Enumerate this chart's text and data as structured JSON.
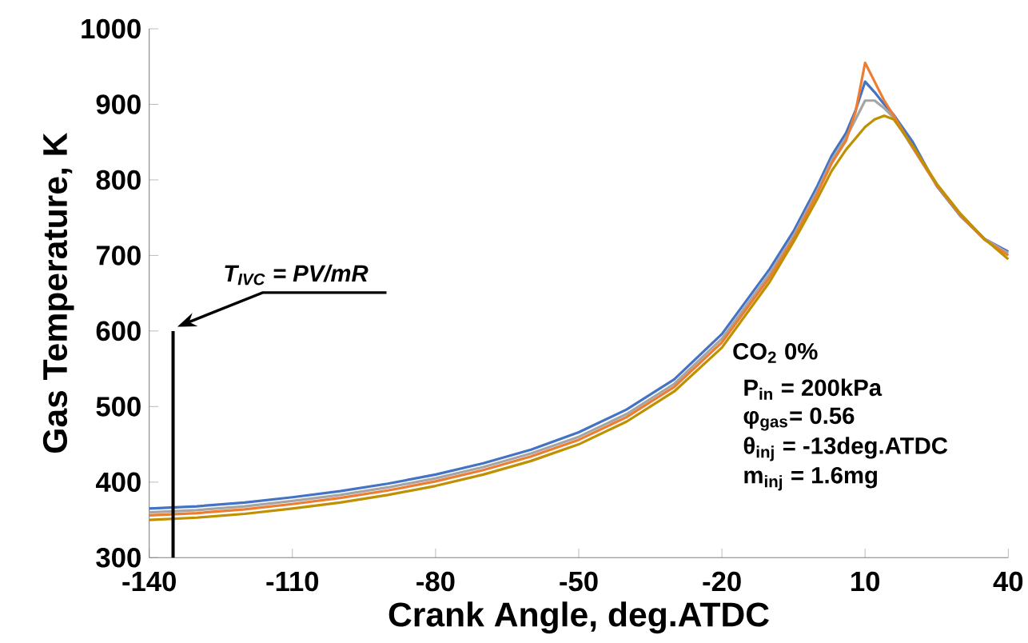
{
  "chart_data": {
    "type": "line",
    "xlabel": "Crank Angle, deg.ATDC",
    "ylabel": "Gas Temperature, K",
    "xlim": [
      -140,
      40
    ],
    "ylim": [
      300,
      1000
    ],
    "xticks": [
      -140,
      -110,
      -80,
      -50,
      -20,
      10,
      40
    ],
    "yticks": [
      300,
      400,
      500,
      600,
      700,
      800,
      900,
      1000
    ],
    "grid": false,
    "marker": "none",
    "line_style": "solid",
    "x": [
      -140,
      -130,
      -120,
      -110,
      -100,
      -90,
      -80,
      -70,
      -60,
      -50,
      -40,
      -30,
      -20,
      -10,
      -5,
      0,
      3,
      6,
      8,
      10,
      12,
      14,
      16,
      20,
      25,
      30,
      35,
      40
    ],
    "series": [
      {
        "color": "#4472c4",
        "values": [
          365,
          368,
          373,
          380,
          388,
          398,
          410,
          425,
          443,
          466,
          496,
          536,
          596,
          682,
          732,
          792,
          832,
          862,
          892,
          930,
          916,
          900,
          886,
          850,
          792,
          752,
          722,
          705
        ]
      },
      {
        "color": "#a5a5a5",
        "values": [
          360,
          363,
          368,
          375,
          383,
          393,
          405,
          420,
          438,
          460,
          490,
          530,
          590,
          676,
          726,
          786,
          826,
          856,
          880,
          905,
          905,
          895,
          882,
          842,
          793,
          753,
          722,
          703
        ]
      },
      {
        "color": "#ed7d31",
        "values": [
          356,
          359,
          364,
          371,
          379,
          389,
          401,
          416,
          434,
          456,
          486,
          526,
          585,
          671,
          722,
          782,
          822,
          852,
          890,
          955,
          930,
          905,
          885,
          843,
          793,
          753,
          721,
          700
        ]
      },
      {
        "color": "#bf9000",
        "values": [
          350,
          353,
          358,
          365,
          373,
          383,
          395,
          410,
          428,
          450,
          480,
          520,
          578,
          665,
          718,
          775,
          812,
          840,
          855,
          870,
          880,
          885,
          880,
          845,
          795,
          755,
          722,
          695
        ]
      }
    ],
    "ref_lines": [
      {
        "axis": "x",
        "value": -135,
        "color": "#000000"
      }
    ],
    "annotations": [
      {
        "text": "T$_{IVC}$ = PV/mR",
        "x": -135,
        "y": 600
      },
      "CO$_{2}$ 0%",
      "P$_{in}$ = 200kPa",
      "φ$_{gas}$= 0.56",
      "θ$_{inj}$ = -13deg.ATDC",
      "m$_{inj}$ = 1.6mg"
    ]
  }
}
